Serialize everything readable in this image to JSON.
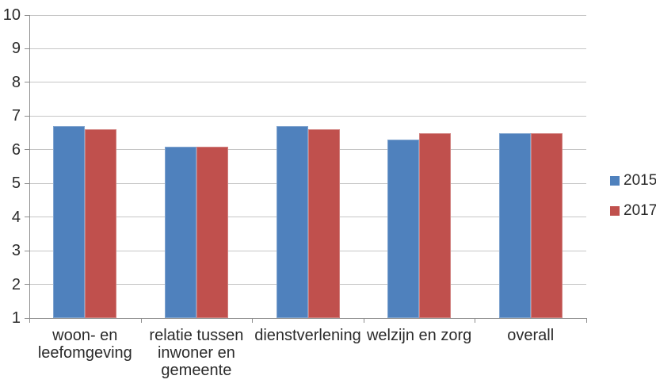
{
  "chart_data": {
    "type": "bar",
    "title": "",
    "xlabel": "",
    "ylabel": "",
    "categories": [
      "woon- en leefomgeving",
      "relatie tussen inwoner en gemeente",
      "dienstverlening",
      "welzijn en zorg",
      "overall"
    ],
    "category_labels": [
      "woon- en\nleefomgeving",
      "relatie tussen\ninwoner en\ngemeente",
      "dienstverlening",
      "welzijn en zorg",
      "overall"
    ],
    "series": [
      {
        "name": "2015",
        "color": "#4F81BD",
        "values": [
          6.7,
          6.1,
          6.7,
          6.3,
          6.5
        ]
      },
      {
        "name": "2017",
        "color": "#C0504D",
        "values": [
          6.6,
          6.1,
          6.6,
          6.5,
          6.5
        ]
      }
    ],
    "ylim": [
      1,
      10
    ],
    "ytick_step": 1,
    "yticks": [
      "1",
      "2",
      "3",
      "4",
      "5",
      "6",
      "7",
      "8",
      "9",
      "10"
    ],
    "grid": true,
    "legend_position": "right",
    "colors": {
      "series_2015": "#4F81BD",
      "series_2017": "#C0504D",
      "gridline": "#C6C6C6",
      "axis": "#8E8E8E",
      "text": "#2B2B2B"
    }
  }
}
